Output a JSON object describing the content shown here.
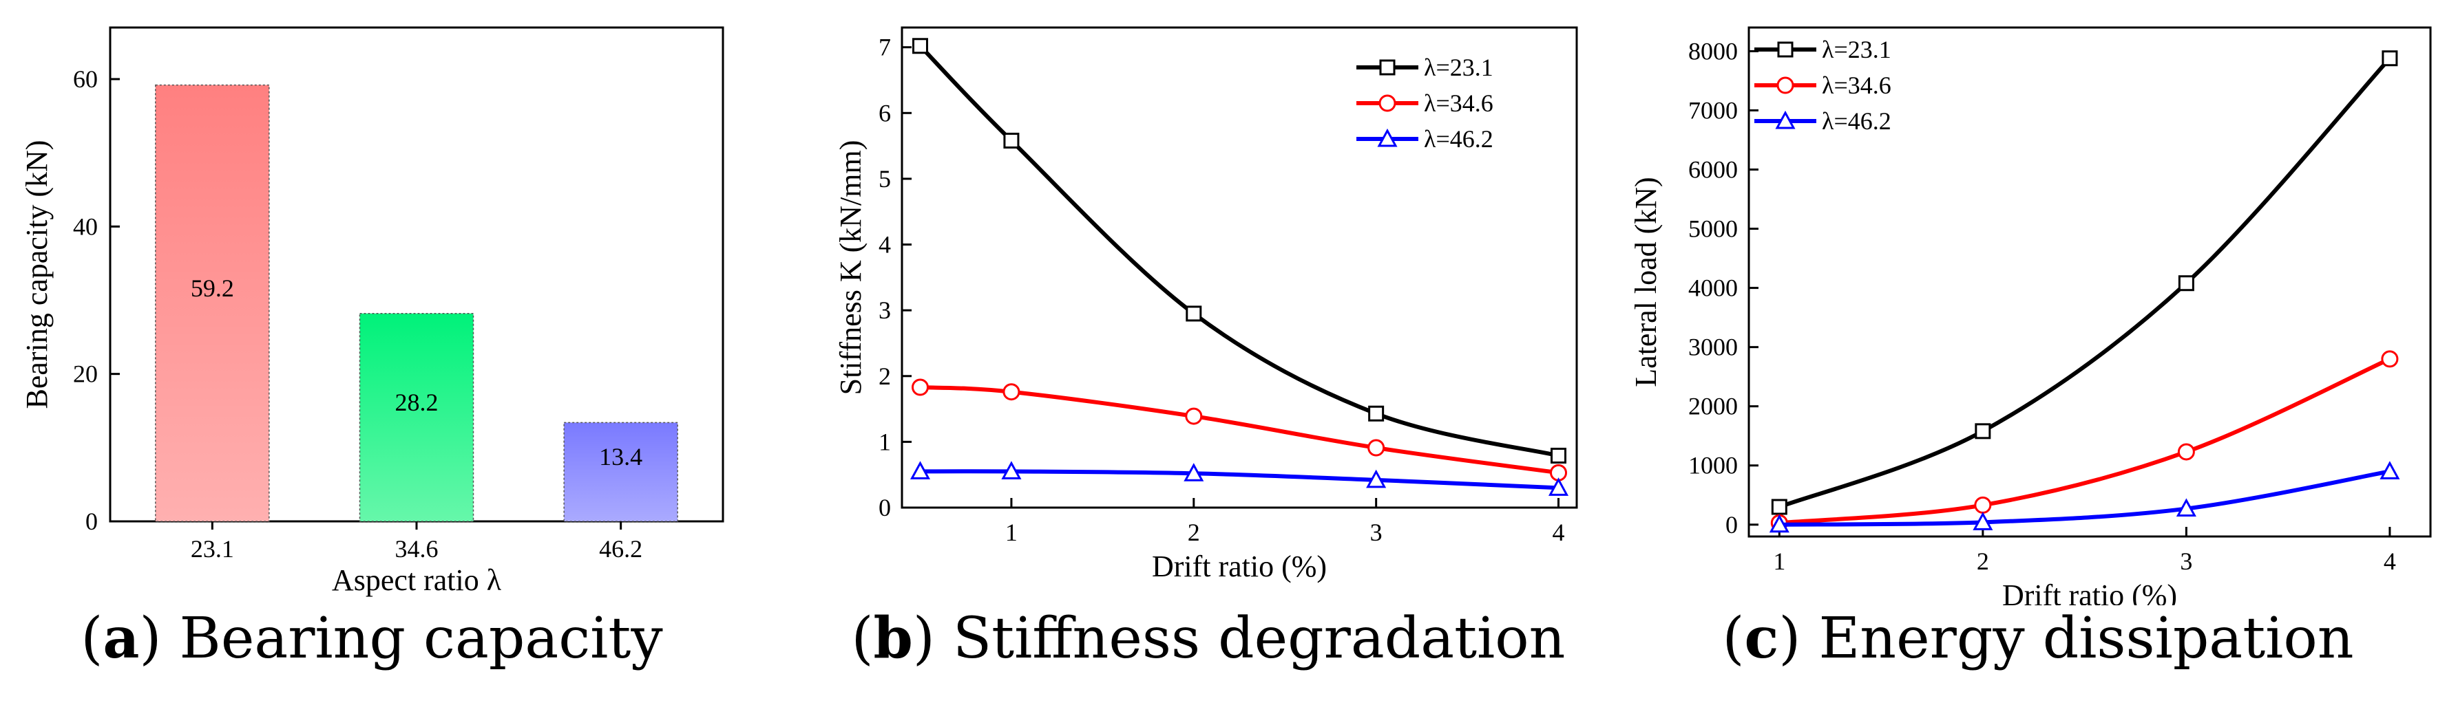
{
  "chart_data": [
    {
      "type": "bar",
      "caption": {
        "letter": "a",
        "title": "Bearing capacity"
      },
      "xlabel": "Aspect ratio λ",
      "ylabel": "Bearing capacity (kN)",
      "ylim": [
        0,
        67
      ],
      "yticks": [
        0,
        20,
        40,
        60
      ],
      "categories": [
        "23.1",
        "34.6",
        "46.2"
      ],
      "values": [
        59.2,
        28.2,
        13.4
      ],
      "value_labels": [
        "59.2",
        "28.2",
        "13.4"
      ],
      "colors": [
        {
          "top": "#ff8080",
          "bottom": "#ffb0b0"
        },
        {
          "top": "#00f27a",
          "bottom": "#66f7aa"
        },
        {
          "top": "#7a7aff",
          "bottom": "#aaaaff"
        }
      ]
    },
    {
      "type": "line",
      "caption": {
        "letter": "b",
        "title": "Stiffness degradation"
      },
      "xlabel": "Drift ratio (%)",
      "ylabel": "Stiffness K (kN/mm)",
      "xlim": [
        0.4,
        4.1
      ],
      "ylim": [
        0,
        7.3
      ],
      "xticks": [
        1,
        2,
        3,
        4
      ],
      "yticks": [
        0,
        1,
        2,
        3,
        4,
        5,
        6,
        7
      ],
      "legend_position": "top-right",
      "series": [
        {
          "name": "λ=23.1",
          "color": "#000000",
          "marker": "square",
          "x": [
            0.5,
            1,
            2,
            3,
            4
          ],
          "y": [
            7.02,
            5.58,
            2.95,
            1.43,
            0.79
          ]
        },
        {
          "name": "λ=34.6",
          "color": "#ff0000",
          "marker": "circle",
          "x": [
            0.5,
            1,
            2,
            3,
            4
          ],
          "y": [
            1.83,
            1.76,
            1.39,
            0.91,
            0.53
          ]
        },
        {
          "name": "λ=46.2",
          "color": "#0000ff",
          "marker": "triangle",
          "x": [
            0.5,
            1,
            2,
            3,
            4
          ],
          "y": [
            0.55,
            0.55,
            0.52,
            0.42,
            0.3
          ]
        }
      ]
    },
    {
      "type": "line",
      "caption": {
        "letter": "c",
        "title": "Energy dissipation"
      },
      "xlabel": "Drift ratio (%)",
      "ylabel": "Lateral load (kN)",
      "xlim": [
        0.85,
        4.2
      ],
      "ylim": [
        -200,
        8400
      ],
      "xticks": [
        1,
        2,
        3,
        4
      ],
      "yticks": [
        0,
        1000,
        2000,
        3000,
        4000,
        5000,
        6000,
        7000,
        8000
      ],
      "legend_position": "top-left",
      "series": [
        {
          "name": "λ=23.1",
          "color": "#000000",
          "marker": "square",
          "x": [
            1,
            2,
            3,
            4
          ],
          "y": [
            300,
            1580,
            4080,
            7880
          ]
        },
        {
          "name": "λ=34.6",
          "color": "#ff0000",
          "marker": "circle",
          "x": [
            1,
            2,
            3,
            4
          ],
          "y": [
            30,
            330,
            1230,
            2800
          ]
        },
        {
          "name": "λ=46.2",
          "color": "#0000ff",
          "marker": "triangle",
          "x": [
            1,
            2,
            3,
            4
          ],
          "y": [
            0,
            40,
            270,
            900
          ]
        }
      ]
    }
  ]
}
